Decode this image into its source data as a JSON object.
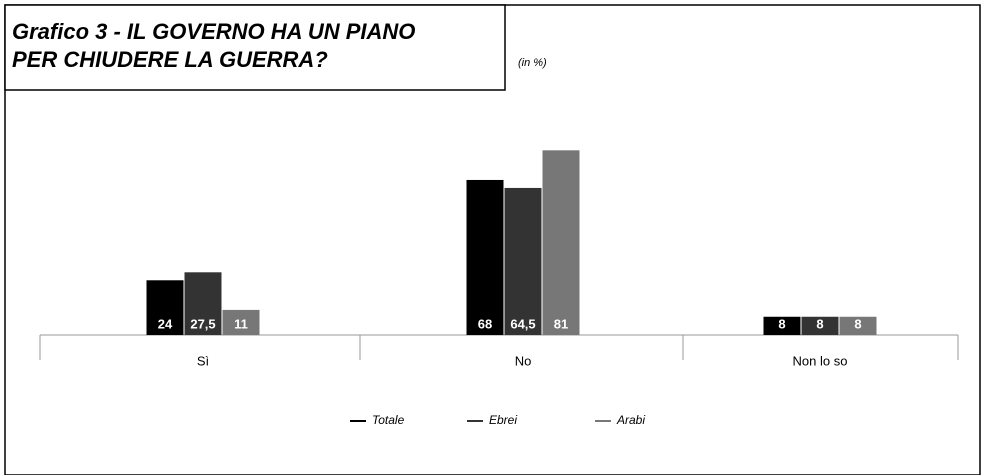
{
  "chart_data": {
    "type": "bar",
    "title": [
      "Grafico 3 - IL GOVERNO HA UN PIANO",
      "PER CHIUDERE LA GUERRA?"
    ],
    "subtitle": "(in %)",
    "categories": [
      "Sì",
      "No",
      "Non lo so"
    ],
    "series": [
      {
        "name": "Totale",
        "color": "#000000",
        "values": [
          24,
          68,
          8
        ],
        "value_labels": [
          "24",
          "68",
          "8"
        ]
      },
      {
        "name": "Ebrei",
        "color": "#333333",
        "values": [
          27.5,
          64.5,
          8
        ],
        "value_labels": [
          "27,5",
          "64,5",
          "8"
        ]
      },
      {
        "name": "Arabi",
        "color": "#777777",
        "values": [
          11,
          81,
          8
        ],
        "value_labels": [
          "11",
          "81",
          "8"
        ]
      }
    ],
    "legend": "bottom"
  }
}
